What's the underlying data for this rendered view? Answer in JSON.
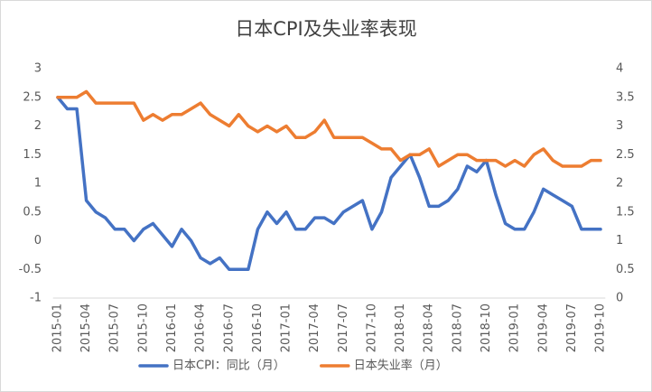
{
  "chart_data": {
    "type": "line",
    "title": "日本CPI及失业率表现",
    "categories": [
      "2015-01",
      null,
      null,
      "2015-04",
      null,
      null,
      "2015-07",
      null,
      null,
      "2015-10",
      null,
      null,
      "2016-01",
      null,
      null,
      "2016-04",
      null,
      null,
      "2016-07",
      null,
      null,
      "2016-10",
      null,
      null,
      "2017-01",
      null,
      null,
      "2017-04",
      null,
      null,
      "2017-07",
      null,
      null,
      "2017-10",
      null,
      null,
      "2018-01",
      null,
      null,
      "2018-04",
      null,
      null,
      "2018-07",
      null,
      null,
      "2018-10",
      null,
      null,
      "2019-01",
      null,
      null,
      "2019-04",
      null,
      null,
      "2019-07",
      null,
      null,
      "2019-10"
    ],
    "series": [
      {
        "name": "日本CPI：同比（月）",
        "color": "#4472c4",
        "axis": "y",
        "values": [
          2.5,
          2.3,
          2.3,
          0.7,
          0.5,
          0.4,
          0.2,
          0.2,
          0.0,
          0.2,
          0.3,
          0.1,
          -0.1,
          0.2,
          0.0,
          -0.3,
          -0.4,
          -0.3,
          -0.5,
          -0.5,
          -0.5,
          0.2,
          0.5,
          0.3,
          0.5,
          0.2,
          0.2,
          0.4,
          0.4,
          0.3,
          0.5,
          0.6,
          0.7,
          0.2,
          0.5,
          1.1,
          1.3,
          1.5,
          1.1,
          0.6,
          0.6,
          0.7,
          0.9,
          1.3,
          1.2,
          1.4,
          0.8,
          0.3,
          0.2,
          0.2,
          0.5,
          0.9,
          0.8,
          0.7,
          0.6,
          0.2,
          0.2,
          0.2
        ]
      },
      {
        "name": "日本失业率（月）",
        "color": "#ed7d31",
        "axis": "y2",
        "values": [
          3.5,
          3.5,
          3.5,
          3.6,
          3.4,
          3.4,
          3.4,
          3.4,
          3.4,
          3.1,
          3.2,
          3.1,
          3.2,
          3.2,
          3.3,
          3.4,
          3.2,
          3.1,
          3.0,
          3.2,
          3.0,
          2.9,
          3.0,
          2.9,
          3.0,
          2.8,
          2.8,
          2.9,
          3.1,
          2.8,
          2.8,
          2.8,
          2.8,
          2.7,
          2.6,
          2.6,
          2.4,
          2.5,
          2.5,
          2.6,
          2.3,
          2.4,
          2.5,
          2.5,
          2.4,
          2.4,
          2.4,
          2.3,
          2.4,
          2.3,
          2.5,
          2.6,
          2.4,
          2.3,
          2.3,
          2.3,
          2.4,
          2.4
        ]
      }
    ],
    "ylim": [
      -1,
      3
    ],
    "yticks": [
      -1,
      -0.5,
      0,
      0.5,
      1,
      1.5,
      2,
      2.5,
      3
    ],
    "y2lim": [
      0,
      4
    ],
    "y2ticks": [
      0,
      0.5,
      1,
      1.5,
      2,
      2.5,
      3,
      3.5,
      4
    ],
    "grid": false,
    "legend": "bottom"
  }
}
